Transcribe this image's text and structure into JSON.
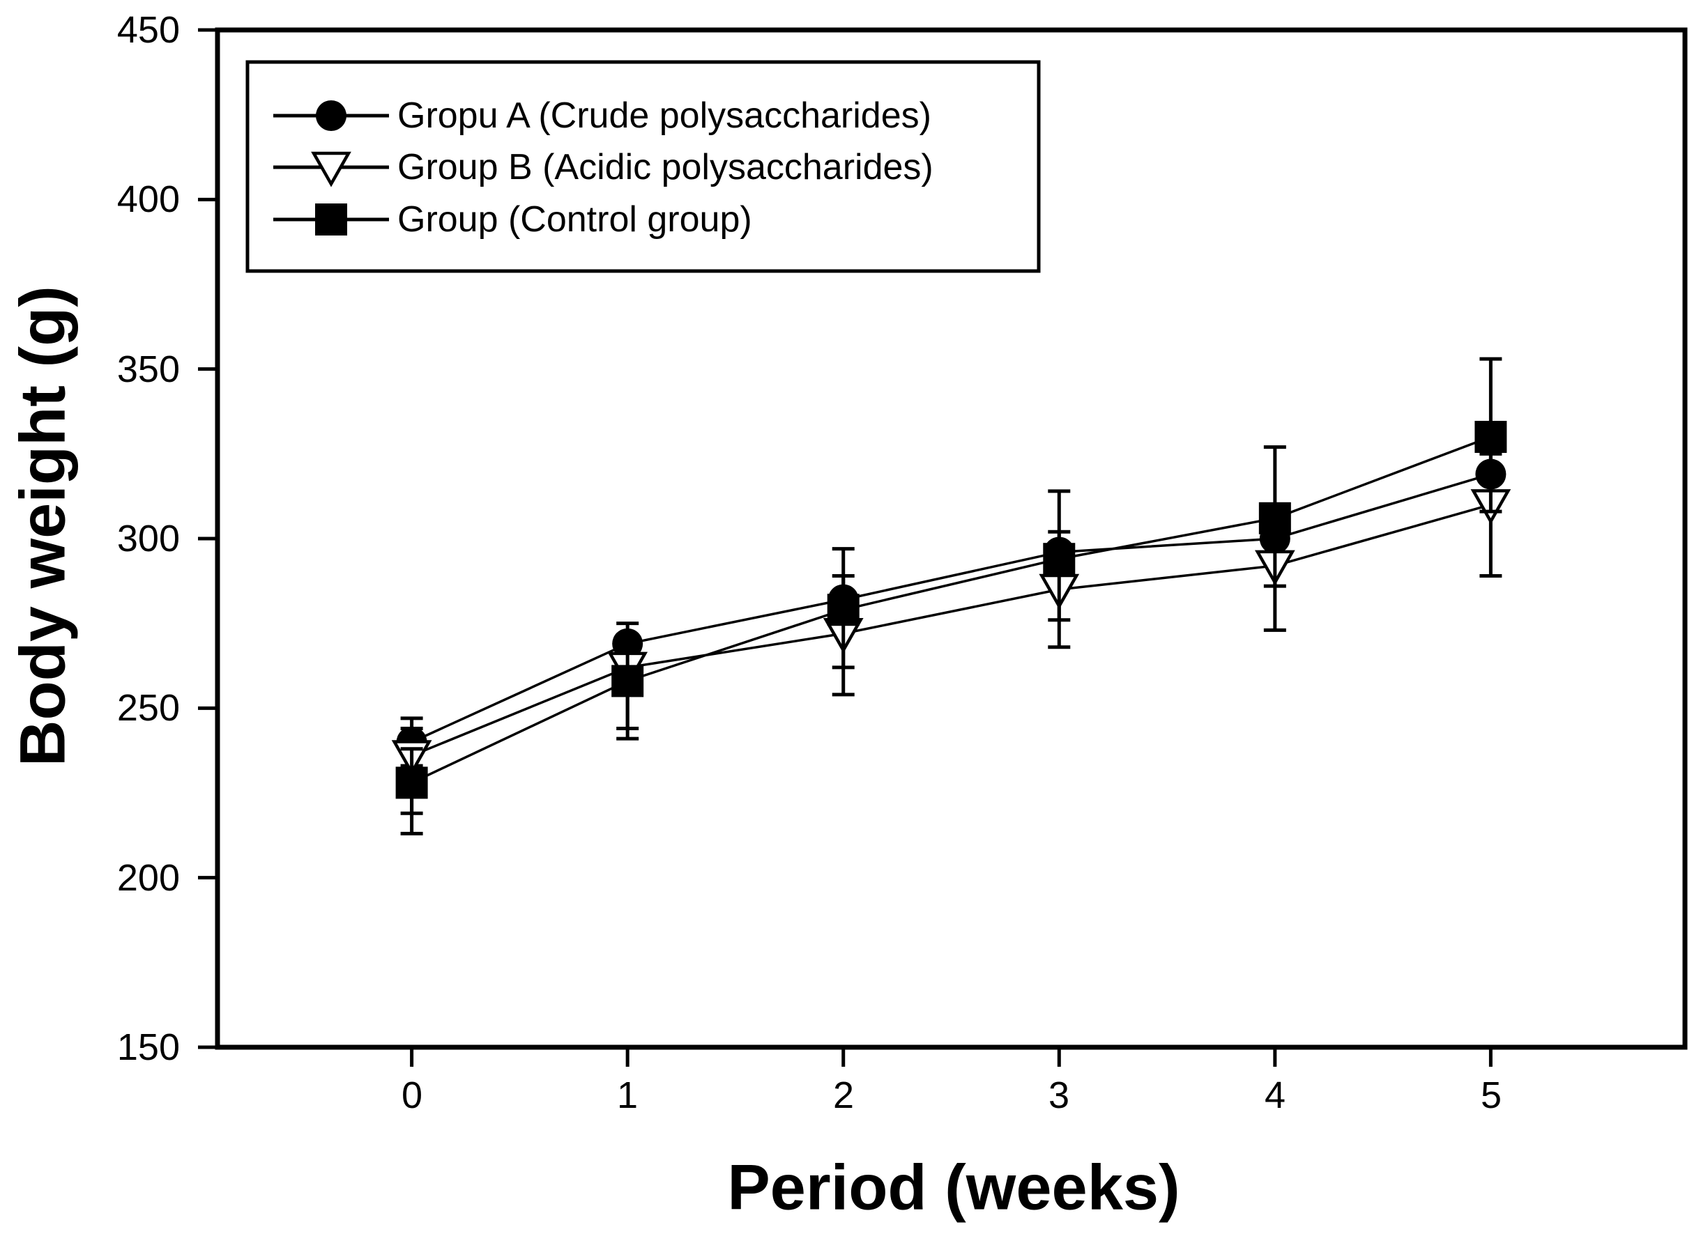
{
  "chart_data": {
    "type": "line",
    "title": "",
    "xlabel": "Period (weeks)",
    "ylabel": "Body weight (g)",
    "x": [
      0,
      1,
      2,
      3,
      4,
      5
    ],
    "xtick_labels": [
      "0",
      "1",
      "2",
      "3",
      "4",
      "5"
    ],
    "yticks": [
      450,
      400,
      350,
      300,
      250,
      200,
      150
    ],
    "ytick_labels": [
      "450",
      "400",
      "350",
      "300",
      "250",
      "200",
      "150"
    ],
    "xlim": [
      -0.9,
      5.9
    ],
    "ylim": [
      150,
      450
    ],
    "grid": false,
    "legend_position": "upper-left-inside",
    "line_color": "#000000",
    "background_color": "#ffffff",
    "series": [
      {
        "name": "Gropu A (Crude polysaccharides)",
        "marker": "filled-circle",
        "values": [
          240,
          269,
          282,
          296,
          300,
          319
        ],
        "err_plus": [
          7,
          6,
          7,
          6,
          6,
          6
        ],
        "err_minus": [
          7,
          6,
          7,
          6,
          6,
          6
        ]
      },
      {
        "name": "Group B (Acidic polysaccharides)",
        "marker": "open-triangle-down",
        "values": [
          236,
          262,
          272,
          285,
          292,
          310
        ],
        "err_plus": [
          8,
          8,
          8,
          8,
          8,
          8
        ],
        "err_minus": [
          17,
          18,
          18,
          17,
          19,
          21
        ]
      },
      {
        "name": "Group (Control group)",
        "marker": "filled-square",
        "values": [
          228,
          258,
          279,
          294,
          306,
          330
        ],
        "err_plus": [
          10,
          12,
          18,
          20,
          21,
          23
        ],
        "err_minus": [
          15,
          17,
          17,
          18,
          20,
          22
        ]
      }
    ]
  }
}
